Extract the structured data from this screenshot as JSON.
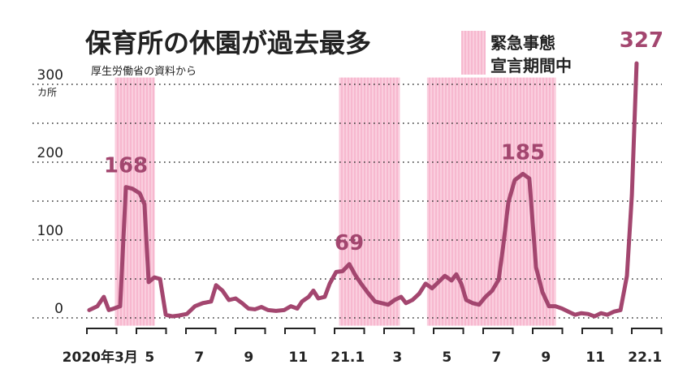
{
  "chart_data": {
    "type": "line",
    "title": "保育所の休園が過去最多",
    "subtitle": "厚生労働省の資料から",
    "y_unit": "カ所",
    "legend_label": [
      "緊急事態",
      "宣言期間中"
    ],
    "band_color": "#f7b8cf",
    "bands": [
      [
        1.2,
        2.8
      ],
      [
        10.25,
        12.7
      ],
      [
        13.8,
        19.0
      ]
    ],
    "xlim": [
      -0.2,
      22.9
    ],
    "xticks": [
      {
        "value": 0.5,
        "label": "2020年3月"
      },
      {
        "value": 2.5,
        "label": "5"
      },
      {
        "value": 4.5,
        "label": "7"
      },
      {
        "value": 6.5,
        "label": "9"
      },
      {
        "value": 8.5,
        "label": "11"
      },
      {
        "value": 10.5,
        "label": "21.1"
      },
      {
        "value": 12.5,
        "label": "3"
      },
      {
        "value": 14.5,
        "label": "5"
      },
      {
        "value": 16.5,
        "label": "7"
      },
      {
        "value": 18.5,
        "label": "9"
      },
      {
        "value": 20.5,
        "label": "11"
      },
      {
        "value": 22.5,
        "label": "22.1"
      }
    ],
    "ylim": [
      -10,
      340
    ],
    "yticks": [
      0,
      100,
      200,
      300
    ],
    "minor_yticks": [
      50,
      150,
      250
    ],
    "grid": true,
    "labeled": [
      6,
      41,
      69,
      87
    ],
    "series": [
      {
        "color": "#a3466f",
        "x": [
          0.16,
          0.49,
          0.75,
          0.95,
          1.15,
          1.41,
          1.64,
          1.9,
          2.2,
          2.39,
          2.56,
          2.79,
          3.02,
          3.25,
          3.51,
          3.77,
          4.1,
          4.43,
          4.75,
          5.08,
          5.28,
          5.54,
          5.8,
          6.07,
          6.33,
          6.59,
          6.85,
          7.11,
          7.38,
          7.7,
          8.03,
          8.3,
          8.56,
          8.75,
          9.02,
          9.21,
          9.41,
          9.67,
          9.87,
          10.13,
          10.39,
          10.66,
          10.92,
          11.18,
          11.44,
          11.7,
          11.97,
          12.23,
          12.49,
          12.75,
          12.95,
          13.21,
          13.48,
          13.74,
          14.0,
          14.26,
          14.52,
          14.79,
          14.98,
          15.18,
          15.38,
          15.64,
          15.9,
          16.16,
          16.43,
          16.69,
          16.89,
          17.08,
          17.34,
          17.67,
          17.93,
          18.2,
          18.46,
          18.72,
          18.98,
          19.25,
          19.51,
          19.77,
          20.03,
          20.3,
          20.56,
          20.82,
          21.08,
          21.34,
          21.61,
          21.87,
          22.07,
          22.26
        ],
        "values": [
          10,
          15,
          27,
          10,
          12,
          15,
          168,
          166,
          160,
          146,
          46,
          52,
          50,
          4,
          2,
          3,
          5,
          15,
          19,
          21,
          42,
          35,
          23,
          25,
          19,
          12,
          11,
          14,
          10,
          9,
          10,
          15,
          12,
          21,
          27,
          35,
          25,
          27,
          44,
          59,
          60,
          69,
          54,
          42,
          31,
          21,
          19,
          17,
          23,
          27,
          19,
          23,
          31,
          44,
          38,
          46,
          54,
          48,
          56,
          44,
          23,
          19,
          17,
          27,
          35,
          49,
          96,
          148,
          177,
          185,
          179,
          65,
          33,
          15,
          15,
          12,
          8,
          4,
          6,
          5,
          2,
          6,
          4,
          8,
          10,
          54,
          158,
          327
        ]
      }
    ]
  }
}
